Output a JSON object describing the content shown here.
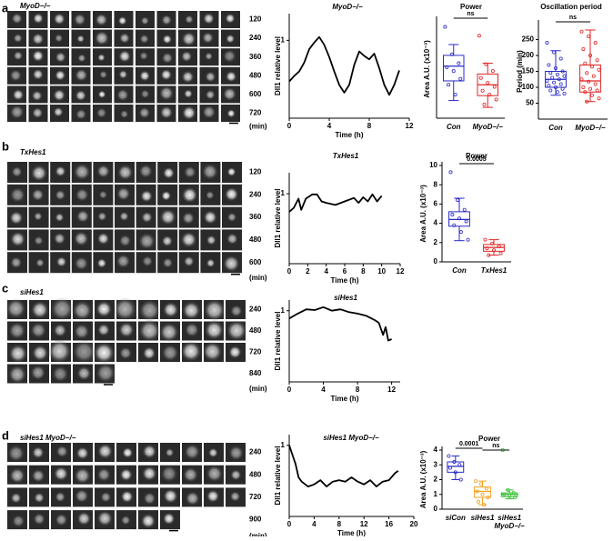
{
  "panels": [
    {
      "label": "a",
      "images": {
        "title": "MyoD−/−",
        "times": [
          120,
          240,
          360,
          480,
          600,
          720
        ],
        "unit": "(min)"
      },
      "line": {
        "type": "line",
        "title": "MyoD−/−",
        "xlabel": "Time (h)",
        "ylabel": "Dll1 relative level",
        "color": "#000000",
        "x": [
          0,
          0.5,
          1,
          1.5,
          2,
          2.5,
          3,
          3.5,
          4,
          4.5,
          5,
          5.5,
          6,
          6.5,
          7,
          7.5,
          8,
          8.5,
          9,
          9.5,
          10,
          10.5,
          11
        ],
        "values": [
          0.63,
          0.68,
          0.72,
          0.8,
          0.92,
          0.98,
          1.03,
          0.96,
          0.85,
          0.72,
          0.6,
          0.53,
          0.6,
          0.78,
          0.9,
          0.86,
          0.83,
          0.88,
          0.75,
          0.6,
          0.51,
          0.6,
          0.73
        ],
        "xlim": [
          0,
          12
        ],
        "xticks": [
          0,
          4,
          8,
          12
        ],
        "ylim": [
          0.3,
          1.24
        ],
        "yticks": [
          1
        ]
      },
      "boxes": [
        {
          "type": "box",
          "title": "Power",
          "ylabel": "Area A.U. (x10⁻³)",
          "ylim": [
            0,
            10
          ],
          "categories": [
            "Con",
            "MyoD−/−"
          ],
          "brackets": [
            "ns"
          ],
          "series": [
            {
              "color": "#2a2ac8",
              "stats": {
                "min": 1.8,
                "q1": 3.8,
                "median": 5.3,
                "q3": 6.4,
                "max": 7.5
              },
              "points": [
                9.3,
                6.5,
                5.6,
                5.2,
                4.8,
                4.0,
                3.4,
                2.4
              ]
            },
            {
              "color": "#e02424",
              "stats": {
                "min": 1.1,
                "q1": 2.3,
                "median": 3.4,
                "q3": 4.5,
                "max": 5.6
              },
              "points": [
                8.4,
                5.5,
                4.8,
                4.1,
                3.6,
                3.2,
                2.8,
                2.4,
                1.9,
                1.4
              ]
            }
          ]
        },
        {
          "type": "box",
          "title": "Oscillation period",
          "ylabel": "Period (min)",
          "ylim": [
            0,
            300
          ],
          "yticks": [
            50,
            100,
            150,
            200,
            250
          ],
          "categories": [
            "Con",
            "MyoD−/−"
          ],
          "brackets": [
            "ns"
          ],
          "series": [
            {
              "color": "#2a2ac8",
              "stats": {
                "min": 75,
                "q1": 100,
                "median": 125,
                "q3": 150,
                "max": 215
              },
              "points": [
                240,
                210,
                190,
                170,
                160,
                150,
                145,
                140,
                135,
                130,
                125,
                120,
                115,
                110,
                105,
                100,
                95,
                90,
                85,
                80
              ]
            },
            {
              "color": "#e02424",
              "stats": {
                "min": 55,
                "q1": 85,
                "median": 120,
                "q3": 170,
                "max": 280
              },
              "points": [
                275,
                260,
                240,
                220,
                200,
                185,
                175,
                165,
                155,
                145,
                135,
                125,
                118,
                110,
                100,
                95,
                90,
                85,
                75,
                65,
                55
              ]
            }
          ]
        }
      ]
    },
    {
      "label": "b",
      "images": {
        "title": "TxHes1",
        "times": [
          120,
          240,
          360,
          480,
          600
        ],
        "unit": "(min)"
      },
      "line": {
        "type": "line",
        "title": "TxHes1",
        "xlabel": "Time (h)",
        "ylabel": "Dll1 relative level",
        "color": "#000000",
        "x": [
          0,
          0.5,
          1,
          1.3,
          1.8,
          2.5,
          3,
          3.5,
          4,
          5,
          6,
          7,
          7.5,
          8,
          8.5,
          9,
          9.5,
          10
        ],
        "values": [
          0.74,
          0.8,
          0.93,
          0.77,
          0.93,
          0.99,
          0.99,
          0.89,
          0.87,
          0.84,
          0.89,
          0.94,
          0.87,
          0.95,
          0.89,
          0.99,
          0.89,
          0.97
        ],
        "xlim": [
          0,
          12
        ],
        "xticks": [
          0,
          2,
          4,
          6,
          8,
          10,
          12
        ],
        "ylim": [
          0,
          1.3
        ],
        "yticks": [
          1
        ]
      },
      "boxes": [
        {
          "type": "box",
          "title": "Power",
          "ylabel": "Area A.U. (x10⁻³)",
          "ylim": [
            0,
            10
          ],
          "yticks": [
            0,
            2,
            4,
            6,
            8,
            10
          ],
          "categories": [
            "Con",
            "TxHes1"
          ],
          "brackets": [
            "0.0005"
          ],
          "series": [
            {
              "color": "#2a2ac8",
              "stats": {
                "min": 2.2,
                "q1": 3.7,
                "median": 4.4,
                "q3": 5.2,
                "max": 6.6
              },
              "points": [
                9.3,
                6.4,
                5.4,
                4.9,
                4.5,
                4.2,
                3.8,
                3.1,
                2.3
              ]
            },
            {
              "color": "#e02424",
              "stats": {
                "min": 0.7,
                "q1": 1.1,
                "median": 1.5,
                "q3": 1.8,
                "max": 2.3
              },
              "points": [
                2.3,
                1.9,
                1.6,
                1.4,
                1.2,
                0.9,
                0.7
              ]
            }
          ]
        }
      ]
    },
    {
      "label": "c",
      "images": {
        "title": "siHes1",
        "times": [
          240,
          480,
          720,
          840
        ],
        "unit": "(min)"
      },
      "line": {
        "type": "line",
        "title": "siHes1",
        "xlabel": "Time (h)",
        "ylabel": "Dll1 relative level",
        "color": "#000000",
        "x": [
          0,
          1,
          2,
          3,
          4,
          5,
          6,
          7,
          8,
          9,
          10,
          10.5,
          11,
          11.3,
          11.6,
          12
        ],
        "values": [
          0.89,
          0.96,
          1.02,
          1.01,
          1.05,
          1.0,
          1.02,
          0.98,
          0.96,
          0.93,
          0.87,
          0.83,
          0.66,
          0.77,
          0.58,
          0.6
        ],
        "xlim": [
          0,
          13
        ],
        "xticks": [
          0,
          4,
          8,
          12
        ],
        "ylim": [
          0,
          1.15
        ],
        "yticks": [
          1
        ]
      },
      "boxes": []
    },
    {
      "label": "d",
      "images": {
        "title": "siHes1 MyoD−/−",
        "times": [
          240,
          480,
          720,
          900
        ],
        "unit": "(min)"
      },
      "line": {
        "type": "line",
        "title": "siHes1 MyoD−/−",
        "xlabel": "Time (h)",
        "ylabel": "Dll1 relative level",
        "color": "#000000",
        "x": [
          0,
          0.5,
          1,
          1.5,
          2,
          3,
          4,
          5,
          6,
          7,
          8,
          9,
          10,
          11,
          12,
          13,
          14,
          15,
          16,
          17,
          17.5
        ],
        "values": [
          1.0,
          0.87,
          0.74,
          0.55,
          0.49,
          0.42,
          0.45,
          0.51,
          0.42,
          0.49,
          0.51,
          0.49,
          0.55,
          0.49,
          0.45,
          0.51,
          0.42,
          0.49,
          0.51,
          0.61,
          0.64
        ],
        "xlim": [
          0,
          20
        ],
        "xticks": [
          0,
          4,
          8,
          12,
          16,
          20
        ],
        "ylim": [
          0,
          1.15
        ],
        "yticks": [
          1
        ]
      },
      "boxes": [
        {
          "type": "box",
          "title": "Power",
          "ylabel": "Area A.U. (x10⁻³)",
          "ylim": [
            0,
            4
          ],
          "yticks": [
            0,
            1,
            2,
            3,
            4
          ],
          "categories": [
            "siCon",
            "siHes1",
            "siHes1 MyoD−/−"
          ],
          "brackets": [
            "0.0001",
            "ns"
          ],
          "series": [
            {
              "color": "#2a2ac8",
              "stats": {
                "min": 2.0,
                "q1": 2.5,
                "median": 2.9,
                "q3": 3.2,
                "max": 3.6
              },
              "points": [
                3.6,
                3.2,
                3.0,
                2.8,
                2.5,
                2.0
              ]
            },
            {
              "color": "#f0a020",
              "stats": {
                "min": 0.3,
                "q1": 0.8,
                "median": 1.2,
                "q3": 1.5,
                "max": 1.9
              },
              "points": [
                1.9,
                1.7,
                1.4,
                1.2,
                1.0,
                0.8,
                0.5,
                0.3
              ]
            },
            {
              "color": "#30c030",
              "stats": {
                "min": 0.7,
                "q1": 0.85,
                "median": 1.0,
                "q3": 1.1,
                "max": 1.3
              },
              "points": [
                4.0,
                1.3,
                1.1,
                1.0,
                0.9,
                0.8
              ]
            }
          ]
        }
      ]
    }
  ]
}
